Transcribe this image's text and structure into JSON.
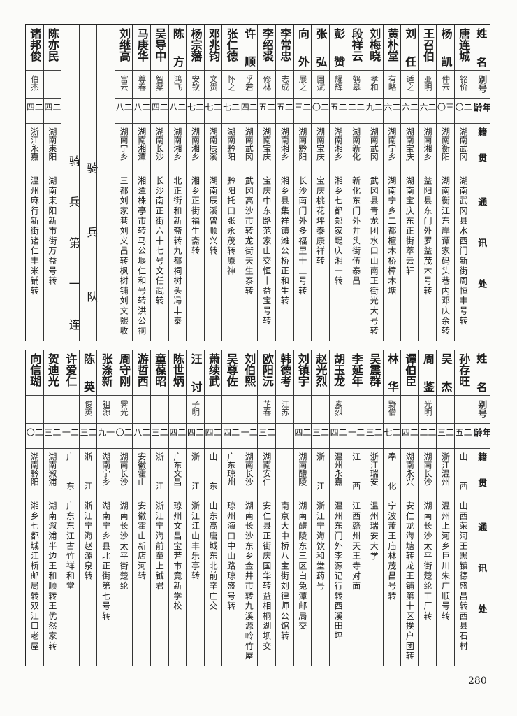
{
  "headers": {
    "name": "姓名",
    "alias": "别号",
    "age": "年龄",
    "native": "籍贯",
    "address": "通讯处"
  },
  "top_table": {
    "rows": [
      {
        "name": "唐连城",
        "alias": "铭价",
        "age": "二〇",
        "native": "湖南武冈",
        "address": "湖南武冈县水西门新街周恒丰号转"
      },
      {
        "name": "杨凯",
        "alias": "仲云",
        "age": "三〇",
        "native": "湖南衡阳",
        "address": "湖南衡江东岸谭家码头巷内邓庆余转"
      },
      {
        "name": "王召伯",
        "alias": "亚明",
        "age": "二六",
        "native": "湖南湘乡",
        "address": "益阳县东门外罗益茂木号转"
      },
      {
        "name": "刘任",
        "alias": "适之",
        "age": "二六",
        "native": "湖南宝庆",
        "address": "湖南宝庆东正街萃云轩"
      },
      {
        "name": "黄朴堂",
        "alias": "有略",
        "age": "二六",
        "native": "湖南宁乡",
        "address": "湖南宁乡二都檀木桥樟木塘"
      },
      {
        "name": "刘梅晓",
        "alias": "孝和",
        "age": "二九",
        "native": "湖南武冈",
        "address": "武冈县青龙团水口山南正街光大号转"
      },
      {
        "name": "段祥云",
        "alias": "鹤皋",
        "age": "二二",
        "native": "湖南新化",
        "address": "新化东门外井头街伍泰昌"
      },
      {
        "name": "彭赞",
        "alias": "耀辉",
        "age": "二五",
        "native": "湖南湘乡",
        "address": "湘乡七都郑家堤庆湘一转"
      },
      {
        "name": "张弘",
        "alias": "国斌",
        "age": "二〇",
        "native": "湖南宝庆",
        "address": "宝庆桃花坪泰康祥转"
      },
      {
        "name": "向外",
        "alias": "展之",
        "age": "二三",
        "native": "湖南黔阳",
        "address": "长沙南门外多福里十二号转"
      },
      {
        "name": "李常忠",
        "alias": "志成",
        "age": "二五",
        "native": "湖南湘乡",
        "address": "湘乡县集祥镇滩公桥正和生转"
      },
      {
        "name": "李绍裘",
        "alias": "修林",
        "age": "二五",
        "native": "湖南宝庆",
        "address": "宝庆中东路范家山交恒丰益宝号转"
      },
      {
        "name": "许顺",
        "alias": "孚若",
        "age": "二四",
        "native": "湖南武冈",
        "address": "武冈高沙市转龙街天生泰转"
      },
      {
        "name": "张仁德",
        "alias": "怀之",
        "age": "二七",
        "native": "湖南黔阳",
        "address": "黔阳托口张永茂转原神"
      },
      {
        "name": "邓兆钧",
        "alias": "文贵",
        "age": "二七",
        "native": "湖南辰溪",
        "address": "湖南辰溪曾顺兴转"
      },
      {
        "name": "杨宗藩",
        "alias": "安钦",
        "age": "二七",
        "native": "湖南湘乡",
        "address": "湘乡正街福生斋转"
      },
      {
        "name": "陈方",
        "alias": "鸿飞",
        "age": "二八",
        "native": "湖南湘乡",
        "address": "北正街和新斋转九都祠树头冯丰泰"
      },
      {
        "name": "吴导中",
        "alias": "智棻",
        "age": "二四",
        "native": "湖南长沙",
        "address": "长沙南正街六十七号文任武转"
      },
      {
        "name": "马庚华",
        "alias": "尊春",
        "age": "二八",
        "native": "湖南湘潭",
        "address": "湘潭株亭市转马公堰仁和号转洪公祠"
      },
      {
        "name": "刘继高",
        "alias": "富云",
        "age": "二八",
        "native": "湖南宁乡",
        "address": "三都刘家巷刘义昌转枫树铺刘文熙收"
      }
    ],
    "section_title": "骑兵队",
    "unit_title": "骑兵第一连",
    "unit_rows": [
      {
        "name": "陈亦民",
        "alias": "",
        "age": "二四",
        "native": "湖南耒阳",
        "address": "湖南耒阳新市街万益号转"
      },
      {
        "name": "诸邦俊",
        "alias": "伯杰",
        "age": "二四",
        "native": "浙江永嘉",
        "address": "温州麻行新街诸仁丰米铺转"
      }
    ]
  },
  "bottom_table": {
    "rows": [
      {
        "name": "孙存旺",
        "alias": "",
        "age": "二五",
        "native": "山西",
        "address": "山西荣河王黑镇德盛昌转西县石村"
      },
      {
        "name": "吴杰",
        "alias": "",
        "age": "二三",
        "native": "浙江温州",
        "address": "温州上河乡巨川朱广顺号转"
      },
      {
        "name": "周鉴",
        "alias": "光明",
        "age": "二二",
        "native": "湖南长沙",
        "address": "湖南长沙太平街楚纶工厂转"
      },
      {
        "name": "谭伯臣",
        "alias": "",
        "age": "二四",
        "native": "湖南永兴",
        "address": "安仁龙海塘转龙王铺第十区挨户团转"
      },
      {
        "name": "林华",
        "alias": "野僧",
        "age": "二七",
        "native": "奉化",
        "address": "宁波萧王庙林茂昌号转"
      },
      {
        "name": "吴震群",
        "alias": "",
        "age": "二三",
        "native": "浙江瑞安",
        "address": "温州瑞安大学"
      },
      {
        "name": "李延年",
        "alias": "",
        "age": "二一",
        "native": "江西",
        "address": "江西赣州天王寺对面"
      },
      {
        "name": "胡玉龙",
        "alias": "素烈",
        "age": "二四",
        "native": "温州永嘉",
        "address": "温州东门外李源记行转西溪田坪"
      },
      {
        "name": "赵光烈",
        "alias": "",
        "age": "二三",
        "native": "浙江",
        "address": "浙江宁海饮和堂药号"
      },
      {
        "name": "刘镇宇",
        "alias": "",
        "age": "二四",
        "native": "湖南醴陵",
        "address": "湖南醴陵东三区白兔潭邮局交"
      },
      {
        "name": "韩德考",
        "alias": "江苏",
        "age": "",
        "native": "",
        "address": "南京大中桥八宝街刘律师公馆转"
      },
      {
        "name": "欧阳沅",
        "alias": "芷春",
        "age": "二三",
        "native": "湖南安仁",
        "address": "安仁县正街庆国华转益相桐湖坝交"
      },
      {
        "name": "刘伯熙",
        "alias": "",
        "age": "二一",
        "native": "湖南长沙",
        "address": "湖南长沙东乡金井市转九溪源岭竹屋"
      },
      {
        "name": "吴尊佐",
        "alias": "",
        "age": "二四",
        "native": "广东琼州",
        "address": "琼州海口中山路琼盛号转"
      },
      {
        "name": "萧续武",
        "alias": "",
        "age": "二四",
        "native": "山东",
        "address": "山东高唐城东北前辛庄交"
      },
      {
        "name": "汪讨",
        "alias": "子明",
        "age": "二四",
        "native": "浙江",
        "address": "浙江江山丰乐亭转"
      },
      {
        "name": "陈世炳",
        "alias": "",
        "age": "二四",
        "native": "广东文昌",
        "address": "琼州文昌宝芳市竟新学校"
      },
      {
        "name": "童葆昭",
        "alias": "",
        "age": "二三",
        "native": "浙江",
        "address": "浙江宁海前童上钺君"
      },
      {
        "name": "游哲西",
        "alias": "",
        "age": "二八",
        "native": "安徽霍山",
        "address": "安徽霍山新店河转"
      },
      {
        "name": "周守刚",
        "alias": "霁光",
        "age": "二〇",
        "native": "湖南长沙",
        "address": "湖南长沙太平街楚纶"
      },
      {
        "name": "张涤新",
        "alias": "祖源",
        "age": "一九",
        "native": "湖南宁乡",
        "address": "湖南宁乡县北正街第七号转"
      },
      {
        "name": "陈英",
        "alias": "俊英",
        "age": "二三",
        "native": "浙江",
        "address": "浙江宁海赵源泉转"
      },
      {
        "name": "许爱仁",
        "alias": "",
        "age": "二一",
        "native": "广东",
        "address": "广东东江古竹祥和堂"
      },
      {
        "name": "贺迪光",
        "alias": "",
        "age": "二三",
        "native": "湖南溆浦",
        "address": "湖南溆浦半边王和顺转王优然家转"
      },
      {
        "name": "向信瑚",
        "alias": "",
        "age": "二〇",
        "native": "湖南黔阳",
        "address": "湘乡七都城江桥邮局转双江口老屋"
      }
    ]
  },
  "page_number": "280"
}
